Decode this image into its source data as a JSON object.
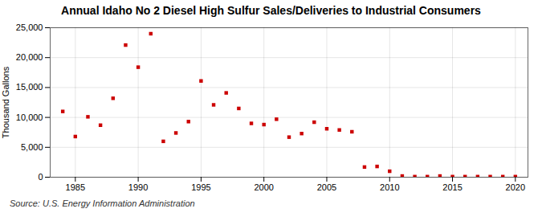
{
  "chart_data": {
    "type": "scatter",
    "title": "Annual Idaho No 2 Diesel High Sulfur Sales/Deliveries to Industrial Consumers",
    "ylabel": "Thousand Gallons",
    "source": "Source: U.S. Energy Information Administration",
    "x": [
      1984,
      1985,
      1986,
      1987,
      1988,
      1989,
      1990,
      1991,
      1992,
      1993,
      1994,
      1995,
      1996,
      1997,
      1998,
      1999,
      2000,
      2001,
      2002,
      2003,
      2004,
      2005,
      2006,
      2007,
      2008,
      2009,
      2010,
      2011,
      2012,
      2013,
      2014,
      2015,
      2016,
      2017,
      2018,
      2019,
      2020
    ],
    "values": [
      11000,
      6800,
      10100,
      8700,
      13200,
      22100,
      18400,
      24000,
      6000,
      7400,
      9300,
      16100,
      12100,
      14100,
      11500,
      9000,
      8800,
      9700,
      6700,
      7300,
      9200,
      8100,
      7900,
      7600,
      1700,
      1800,
      1000,
      200,
      100,
      100,
      200,
      100,
      100,
      100,
      100,
      100,
      100
    ],
    "color": "#cc0000",
    "marker": "square",
    "xlim": [
      1983,
      2021
    ],
    "xticks": [
      1985,
      1990,
      1995,
      2000,
      2005,
      2010,
      2015,
      2020
    ],
    "ylim": [
      0,
      25000
    ],
    "yticks": [
      0,
      {
        "value": 5000,
        "label": "5,000"
      },
      {
        "value": 10000,
        "label": "10,000"
      },
      {
        "value": 15000,
        "label": "15,000"
      },
      {
        "value": 20000,
        "label": "20,000"
      },
      {
        "value": 25000,
        "label": "25,000"
      }
    ],
    "grid": true
  }
}
